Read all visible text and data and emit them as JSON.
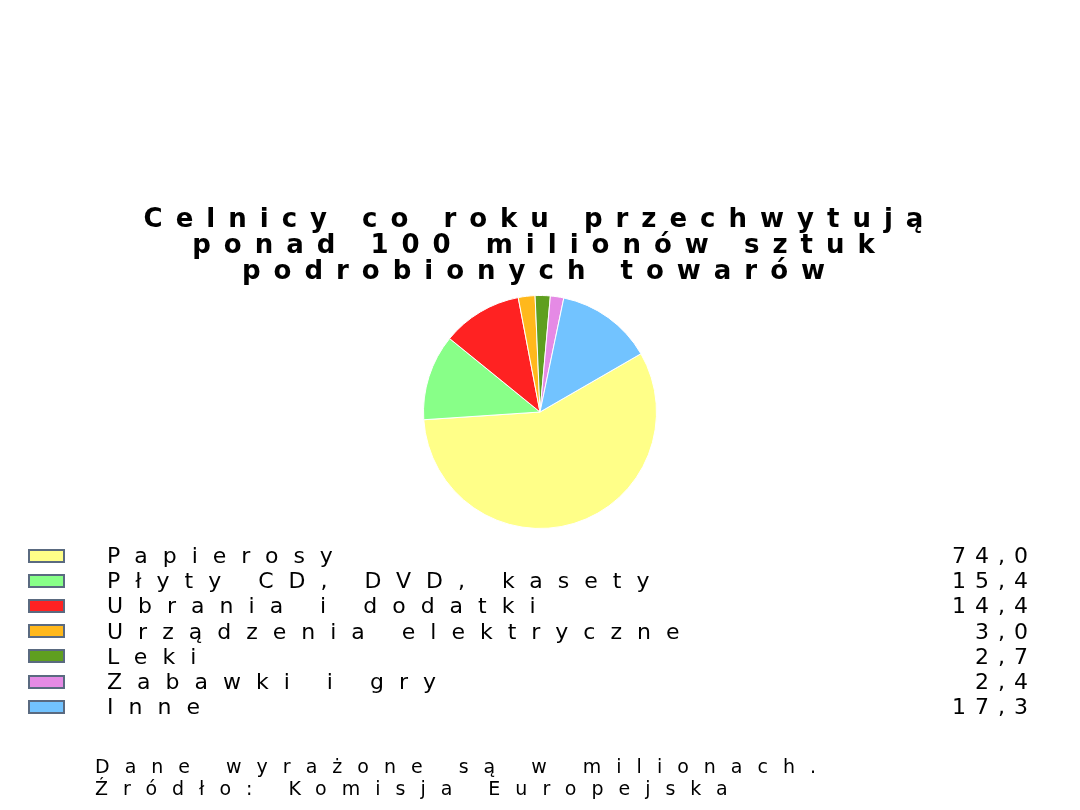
{
  "chart_data": {
    "type": "pie",
    "title": "Celnicy co roku przechwytują ponad 100 milionów sztuk podrobionych towarów",
    "categories": [
      "Papierosy",
      "Płyty CD, DVD, kasety",
      "Ubrania i dodatki",
      "Urządzenia elektryczne",
      "Leki",
      "Zabawki i gry",
      "Inne"
    ],
    "values": [
      74.0,
      15.4,
      14.4,
      3.0,
      2.7,
      2.4,
      17.3
    ],
    "value_labels": [
      "74,0",
      "15,4",
      "14,4",
      "3,0",
      "2,7",
      "2,4",
      "17,3"
    ],
    "colors": [
      "#ffff88",
      "#88ff88",
      "#ff2222",
      "#ffb81c",
      "#5f9f1f",
      "#e58ae5",
      "#72c3ff"
    ],
    "legend": "bottom",
    "annotations": [
      "Dane wyrażone są w milionach.",
      "Źródło: Komisja Europejska"
    ]
  }
}
